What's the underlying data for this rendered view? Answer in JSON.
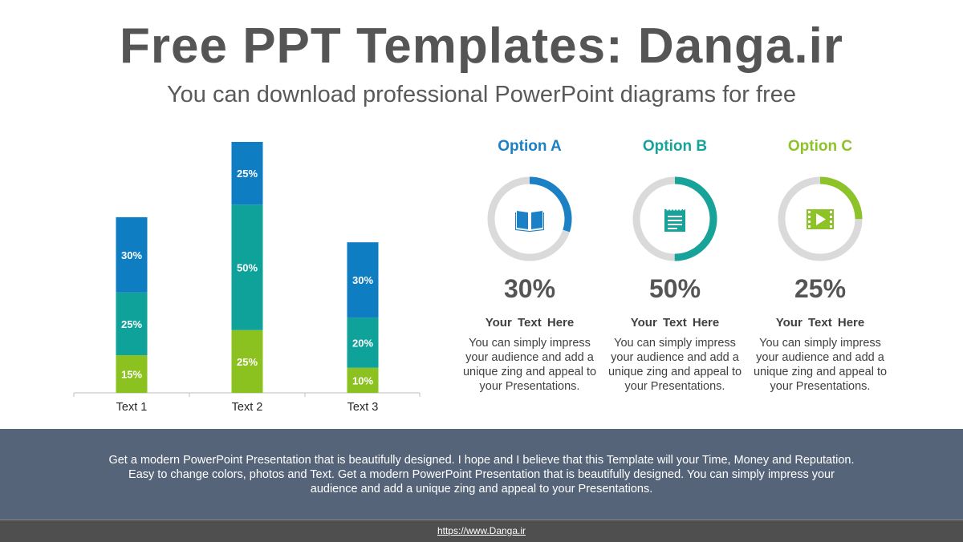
{
  "header": {
    "title": "Free PPT Templates: Danga.ir",
    "subtitle": "You can download professional PowerPoint diagrams for free"
  },
  "chart_data": {
    "type": "bar",
    "stacked": true,
    "categories": [
      "Text 1",
      "Text 2",
      "Text 3"
    ],
    "series": [
      {
        "values": [
          15,
          25,
          10
        ],
        "labels": [
          "15%",
          "25%",
          "10%"
        ],
        "color": "#8cc21f"
      },
      {
        "values": [
          25,
          50,
          20
        ],
        "labels": [
          "25%",
          "50%",
          "20%"
        ],
        "color": "#0ea29a"
      },
      {
        "values": [
          30,
          25,
          30
        ],
        "labels": [
          "30%",
          "25%",
          "30%"
        ],
        "color": "#0f7dc1"
      }
    ],
    "ylim": [
      0,
      100
    ],
    "grid": false,
    "legend": "none"
  },
  "options": [
    {
      "title": "Option A",
      "color": "#1b80c4",
      "percent": "30%",
      "fraction": 0.3,
      "icon": "book-icon",
      "heading": "Your Text Here",
      "description": "You can simply impress your audience and add a unique zing and appeal to your Presentations."
    },
    {
      "title": "Option B",
      "color": "#17a39a",
      "percent": "50%",
      "fraction": 0.5,
      "icon": "notepad-icon",
      "heading": "Your Text Here",
      "description": "You can simply impress your audience and add a unique zing and appeal to your Presentations."
    },
    {
      "title": "Option C",
      "color": "#8dc228",
      "percent": "25%",
      "fraction": 0.25,
      "icon": "video-play-icon",
      "heading": "Your Text Here",
      "description": "You can simply impress your audience and add a unique zing and appeal to your Presentations."
    }
  ],
  "ring_track_color": "#dadada",
  "footer": {
    "text": "Get a modern PowerPoint  Presentation that is beautifully designed. I hope and I believe that this Template will your Time, Money and Reputation. Easy to change colors, photos and Text.  Get a modern PowerPoint  Presentation that is beautifully designed. You can simply impress your audience and add a unique zing and appeal to your Presentations.",
    "link": "https://www.Danga.ir"
  }
}
